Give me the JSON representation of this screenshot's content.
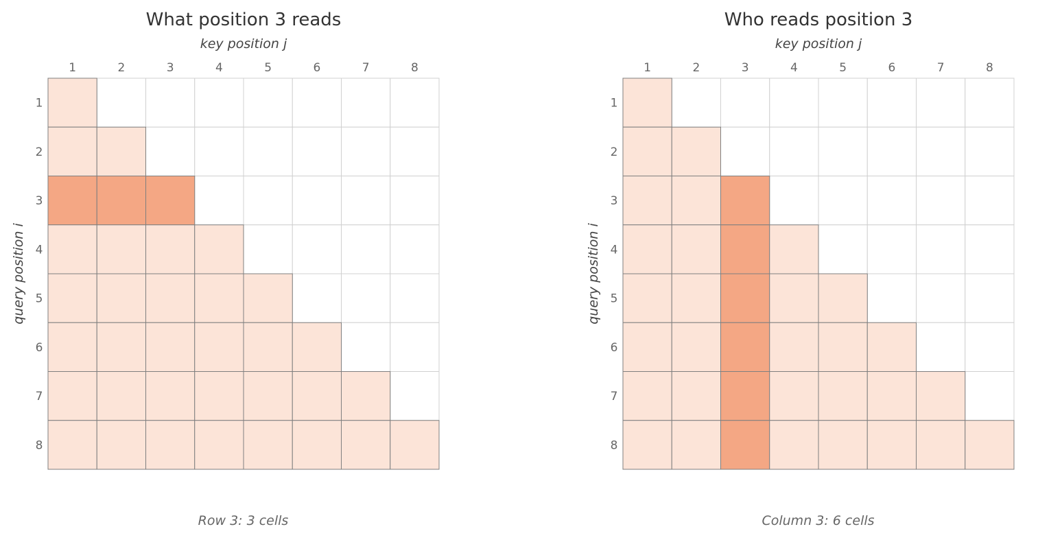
{
  "panels": [
    {
      "title": "What position 3 reads",
      "xlabel": "key position j",
      "ylabel": "query position i",
      "col_labels": [
        "1",
        "2",
        "3",
        "4",
        "5",
        "6",
        "7",
        "8"
      ],
      "row_labels": [
        "1",
        "2",
        "3",
        "4",
        "5",
        "6",
        "7",
        "8"
      ],
      "highlight": {
        "type": "row",
        "index": 3
      },
      "caption": "Row 3: 3 cells"
    },
    {
      "title": "Who reads position 3",
      "xlabel": "key position j",
      "ylabel": "query position i",
      "col_labels": [
        "1",
        "2",
        "3",
        "4",
        "5",
        "6",
        "7",
        "8"
      ],
      "row_labels": [
        "1",
        "2",
        "3",
        "4",
        "5",
        "6",
        "7",
        "8"
      ],
      "highlight": {
        "type": "column",
        "index": 3
      },
      "caption": "Column 3: 6 cells"
    }
  ],
  "colors": {
    "masked": "#fce4d8",
    "highlight": "#f4a784",
    "empty": "#ffffff",
    "grid_empty": "#d0d0d0",
    "grid_filled": "#7f7f7f",
    "title": "#333333",
    "label": "#444444",
    "tick": "#666666"
  }
}
